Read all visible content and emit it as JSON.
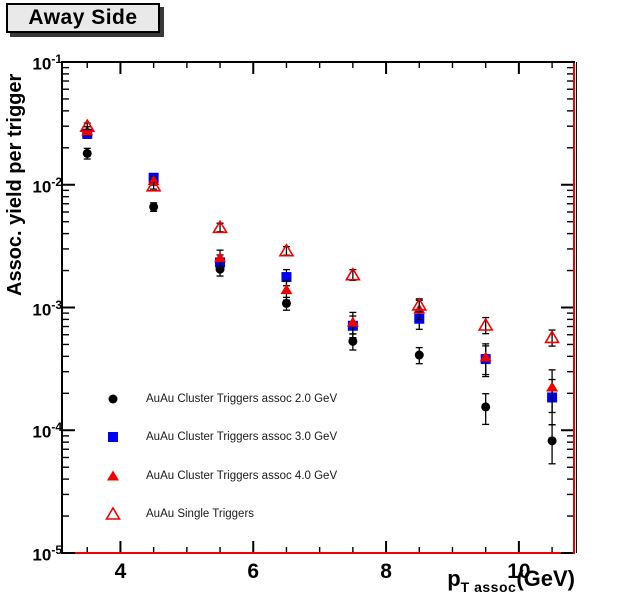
{
  "title": "Away Side",
  "axes": {
    "y_title": "Assoc. yield per trigger",
    "x_title": {
      "main": "p",
      "sub": "T assoc",
      "unit": "(GeV)"
    },
    "x_tick_labels": [
      "4",
      "6",
      "8",
      "10"
    ],
    "y_tick_base": "10",
    "y_tick_exponents": [
      -1,
      -2,
      -3,
      -4,
      -5
    ]
  },
  "colors": {
    "frame": "#f20000",
    "axis_black": "#000000",
    "marker_black": "#000000",
    "marker_blue": "#0000f2",
    "marker_red": "#f20000",
    "error_bar": "#000000",
    "title_box_fill": "#e9e9e9",
    "title_box_shadow": "#383838"
  },
  "chart_data": {
    "type": "scatter",
    "title": "Away Side",
    "xlabel": "p_T assoc (GeV)",
    "ylabel": "Assoc. yield per trigger",
    "x_axis": {
      "scale": "linear",
      "range": [
        3.12,
        10.83
      ],
      "major_ticks": [
        4,
        6,
        8,
        10
      ],
      "minor_tick_step": 0.5
    },
    "y_axis": {
      "scale": "log",
      "range": [
        1e-05,
        0.1
      ],
      "decade_ticks": [
        -1,
        -2,
        -3,
        -4,
        -5
      ]
    },
    "x": [
      3.5,
      4.5,
      5.5,
      6.5,
      7.5,
      8.5,
      9.5,
      10.5
    ],
    "series": [
      {
        "name": "AuAu Cluster Triggers assoc 2.0 GeV",
        "marker": "circle-filled",
        "color": "#000000",
        "values": [
          0.018,
          0.0066,
          0.00205,
          0.00108,
          0.00053,
          0.00041,
          0.000155,
          8.2e-05
        ],
        "rel_err": [
          0.1,
          0.08,
          0.12,
          0.12,
          0.15,
          0.15,
          0.28,
          0.35
        ]
      },
      {
        "name": "AuAu Cluster Triggers assoc 3.0 GeV",
        "marker": "square-filled",
        "color": "#0000f2",
        "values": [
          0.026,
          0.0114,
          0.00233,
          0.00177,
          0.00071,
          0.00081,
          0.00038,
          0.000185
        ],
        "rel_err": [
          0.08,
          0.08,
          0.15,
          0.15,
          0.2,
          0.18,
          0.28,
          0.4
        ]
      },
      {
        "name": "AuAu Cluster Triggers assoc 4.0 GeV",
        "marker": "triangle-filled",
        "color": "#f20000",
        "values": [
          0.0275,
          0.0108,
          0.00255,
          0.0014,
          0.00076,
          0.00097,
          0.000395,
          0.000225
        ],
        "rel_err": [
          0.08,
          0.08,
          0.15,
          0.18,
          0.2,
          0.18,
          0.28,
          0.38
        ]
      },
      {
        "name": "AuAu Single Triggers",
        "marker": "triangle-open",
        "color": "#f20000",
        "values": [
          0.03,
          0.0098,
          0.0045,
          0.0029,
          0.00185,
          0.00105,
          0.00072,
          0.00057
        ],
        "rel_err": [
          0.06,
          0.06,
          0.08,
          0.08,
          0.1,
          0.12,
          0.15,
          0.15
        ]
      }
    ],
    "legend_position": "lower-left-inside"
  }
}
